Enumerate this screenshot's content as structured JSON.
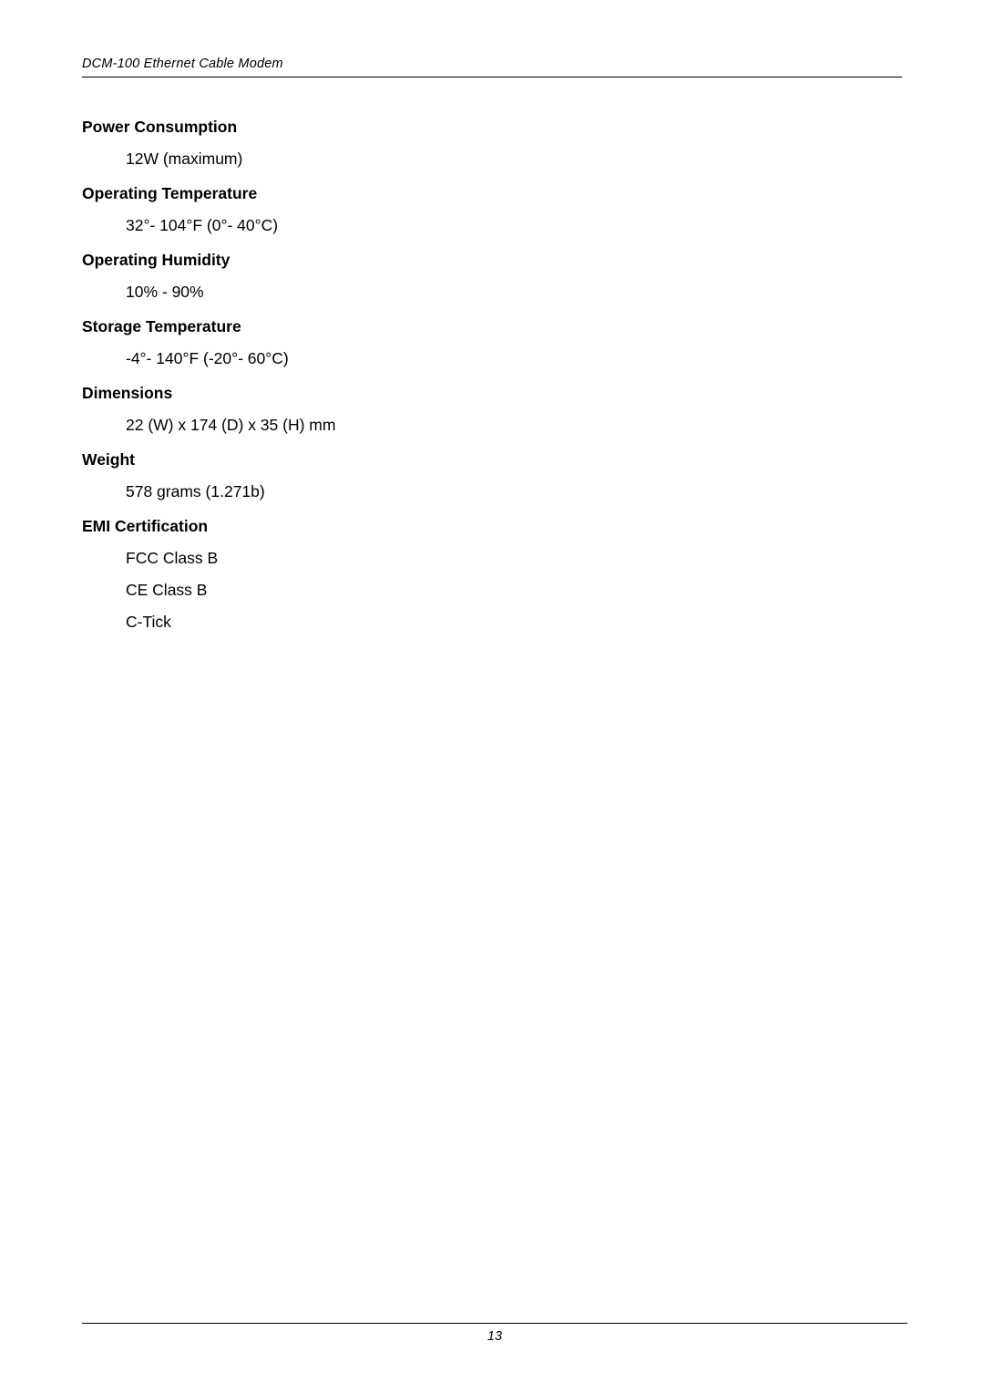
{
  "header": {
    "title": "DCM-100 Ethernet Cable Modem"
  },
  "specs": [
    {
      "heading": "Power Consumption",
      "values": [
        "12W (maximum)"
      ]
    },
    {
      "heading": "Operating Temperature",
      "values": [
        "32°- 104°F (0°- 40°C)"
      ]
    },
    {
      "heading": "Operating Humidity",
      "values": [
        "10% - 90%"
      ]
    },
    {
      "heading": "Storage Temperature",
      "values": [
        "-4°- 140°F (-20°- 60°C)"
      ]
    },
    {
      "heading": "Dimensions",
      "values": [
        "22 (W) x 174 (D) x 35 (H) mm"
      ]
    },
    {
      "heading": "Weight",
      "values": [
        "578 grams (1.271b)"
      ]
    },
    {
      "heading": "EMI Certification",
      "values": [
        "FCC Class B",
        "CE Class B",
        "C-Tick"
      ]
    }
  ],
  "footer": {
    "page_number": "13"
  }
}
